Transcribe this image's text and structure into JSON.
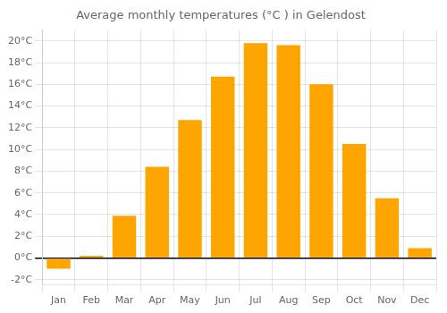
{
  "chart_data": {
    "type": "bar",
    "title": "Average monthly temperatures (°C ) in Gelendost",
    "categories": [
      "Jan",
      "Feb",
      "Mar",
      "Apr",
      "May",
      "Jun",
      "Jul",
      "Aug",
      "Sep",
      "Oct",
      "Nov",
      "Dec"
    ],
    "values": [
      -1.0,
      0.2,
      3.9,
      8.4,
      12.7,
      16.7,
      19.8,
      19.6,
      16.0,
      10.5,
      5.5,
      0.9
    ],
    "color": "#FFA500",
    "ylim": [
      -2.5,
      21.0
    ],
    "yticks": [
      {
        "value": -2,
        "label": "-2°C"
      },
      {
        "value": 0,
        "label": "0°C"
      },
      {
        "value": 2,
        "label": "2°C"
      },
      {
        "value": 4,
        "label": "4°C"
      },
      {
        "value": 6,
        "label": "6°C"
      },
      {
        "value": 8,
        "label": "8°C"
      },
      {
        "value": 10,
        "label": "10°C"
      },
      {
        "value": 12,
        "label": "12°C"
      },
      {
        "value": 14,
        "label": "14°C"
      },
      {
        "value": 16,
        "label": "16°C"
      },
      {
        "value": 18,
        "label": "18°C"
      },
      {
        "value": 20,
        "label": "20°C"
      }
    ],
    "grid": true
  }
}
